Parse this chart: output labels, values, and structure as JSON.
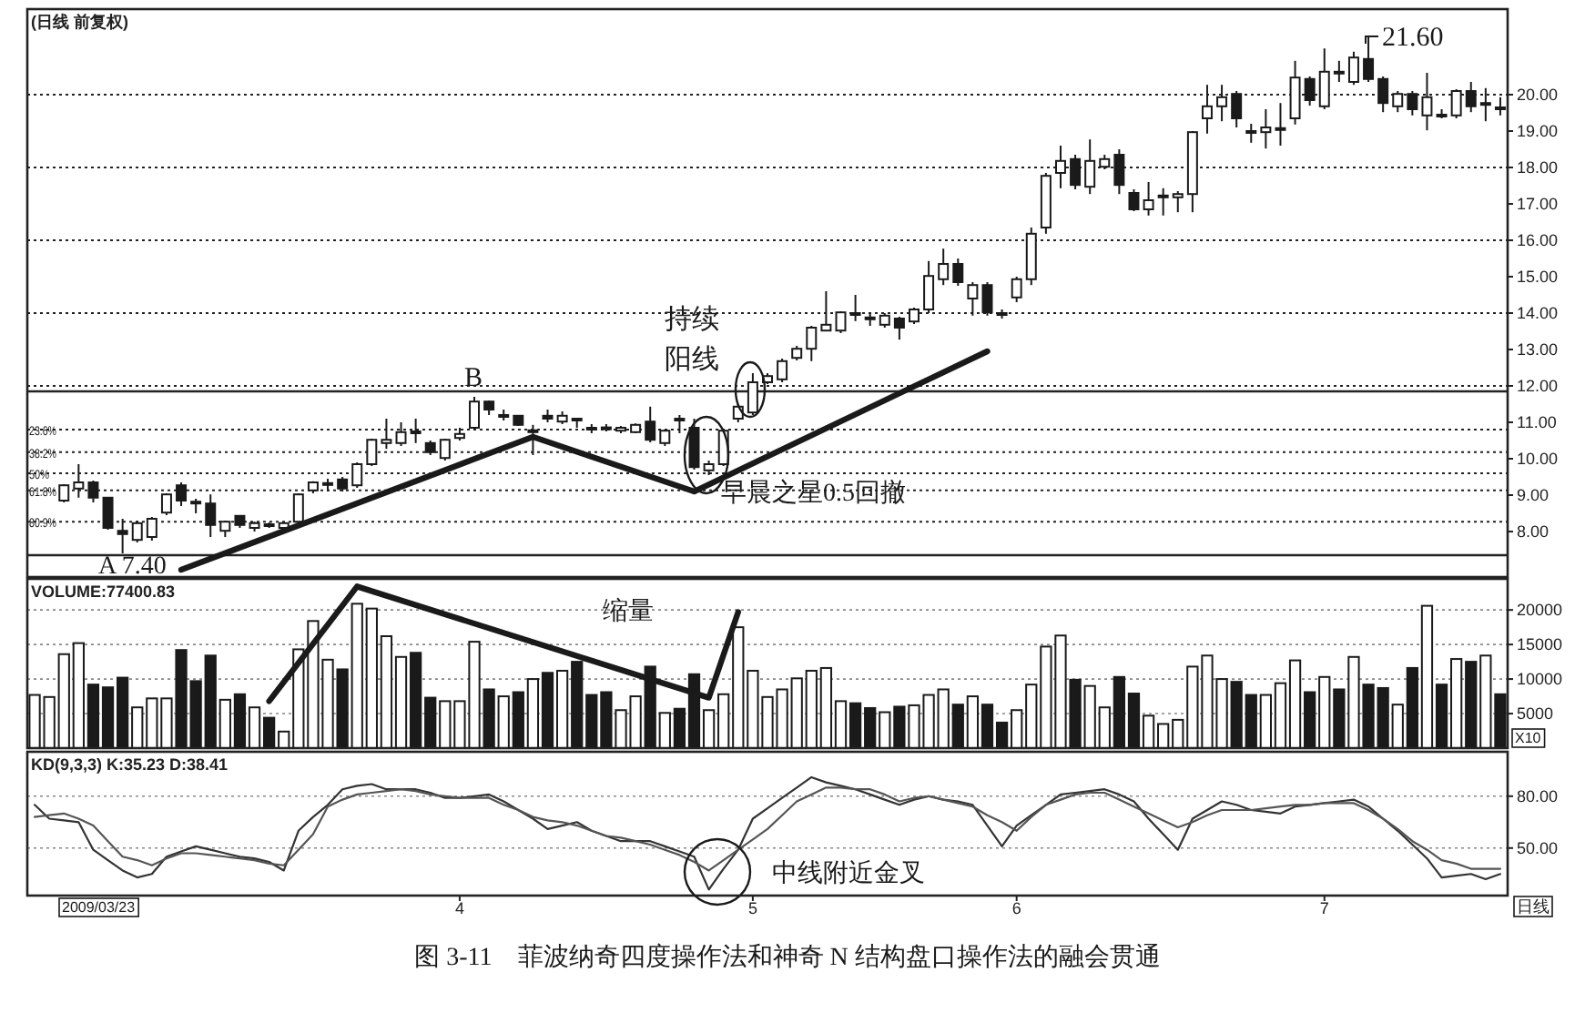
{
  "chart_data": [
    {
      "type": "candlestick",
      "title": "(日线 前复权)",
      "categories": [
        null,
        null,
        null,
        null,
        null,
        null,
        null,
        null,
        null,
        null,
        null,
        null,
        null,
        null,
        null,
        null,
        null,
        null,
        null,
        null,
        null,
        null,
        null,
        null,
        null,
        null,
        null,
        null,
        null,
        null,
        null,
        null,
        null,
        null,
        null,
        null,
        null,
        null,
        null,
        null,
        null,
        null,
        null,
        null,
        null,
        null,
        null,
        null,
        null,
        null,
        null,
        null,
        null,
        null,
        null,
        null,
        null,
        null,
        null,
        null,
        null,
        null,
        null,
        null,
        null,
        null,
        null,
        null,
        null,
        null,
        null,
        null,
        null,
        null,
        null,
        null,
        null,
        null,
        null,
        null,
        null,
        null,
        null,
        null,
        null,
        null,
        null,
        null,
        null,
        null,
        null,
        null,
        null,
        null,
        null,
        null,
        null,
        null,
        null,
        null,
        null
      ],
      "ohlc": [
        null,
        null,
        [
          8.85,
          9.3,
          8.8,
          9.27
        ],
        [
          9.18,
          9.85,
          8.93,
          9.35
        ],
        [
          9.35,
          9.4,
          8.8,
          8.93
        ],
        [
          8.93,
          8.95,
          8.05,
          8.1
        ],
        [
          8.02,
          8.35,
          7.4,
          7.93
        ],
        [
          7.77,
          8.3,
          7.7,
          8.23
        ],
        [
          7.85,
          8.4,
          7.75,
          8.35
        ],
        [
          8.52,
          9.05,
          8.45,
          9.02
        ],
        [
          9.27,
          9.35,
          8.7,
          8.85
        ],
        [
          8.82,
          8.9,
          8.5,
          8.78
        ],
        [
          8.77,
          9.02,
          7.85,
          8.18
        ],
        [
          8.02,
          8.3,
          7.85,
          8.27
        ],
        [
          8.43,
          8.45,
          8.1,
          8.18
        ],
        [
          8.1,
          8.27,
          8.0,
          8.23
        ],
        [
          8.2,
          8.25,
          8.1,
          8.17
        ],
        [
          8.1,
          8.27,
          8.05,
          8.23
        ],
        [
          8.27,
          9.05,
          8.2,
          9.02
        ],
        [
          9.13,
          9.38,
          9.05,
          9.35
        ],
        [
          9.3,
          9.45,
          9.1,
          9.33
        ],
        [
          9.43,
          9.5,
          9.1,
          9.18
        ],
        [
          9.27,
          9.9,
          9.2,
          9.85
        ],
        [
          9.85,
          10.55,
          9.8,
          10.52
        ],
        [
          10.43,
          11.1,
          10.27,
          10.52
        ],
        [
          10.43,
          11.0,
          10.35,
          10.73
        ],
        [
          10.75,
          11.1,
          10.43,
          10.72
        ],
        [
          10.43,
          10.5,
          10.1,
          10.18
        ],
        [
          10.02,
          10.55,
          9.95,
          10.52
        ],
        [
          10.57,
          10.85,
          10.5,
          10.68
        ],
        [
          10.85,
          11.7,
          10.8,
          11.57
        ],
        [
          11.57,
          11.6,
          11.2,
          11.35
        ],
        [
          11.17,
          11.35,
          11.05,
          11.2
        ],
        [
          11.18,
          11.2,
          10.9,
          10.93
        ],
        [
          10.75,
          10.93,
          10.1,
          10.78
        ],
        [
          11.18,
          11.35,
          11.0,
          11.1
        ],
        [
          11.02,
          11.3,
          10.95,
          11.18
        ],
        [
          11.1,
          11.12,
          10.85,
          11.08
        ],
        [
          10.85,
          10.95,
          10.7,
          10.83
        ],
        [
          10.86,
          10.95,
          10.75,
          10.83
        ],
        [
          10.77,
          10.9,
          10.7,
          10.85
        ],
        [
          10.73,
          10.97,
          10.7,
          10.93
        ],
        [
          11.02,
          11.43,
          10.45,
          10.52
        ],
        [
          10.43,
          10.8,
          10.35,
          10.77
        ],
        [
          11.1,
          11.2,
          10.7,
          11.07
        ],
        [
          10.85,
          11.1,
          9.7,
          9.77
        ],
        [
          9.68,
          9.95,
          9.55,
          9.85
        ],
        [
          9.85,
          10.8,
          9.8,
          10.77
        ],
        [
          11.1,
          11.5,
          11.0,
          11.43
        ],
        [
          11.27,
          12.35,
          11.2,
          12.1
        ],
        [
          12.1,
          12.35,
          12.05,
          12.27
        ],
        [
          12.18,
          12.75,
          12.1,
          12.68
        ],
        [
          12.77,
          13.1,
          12.7,
          13.02
        ],
        [
          13.02,
          13.65,
          12.68,
          13.6
        ],
        [
          13.52,
          14.6,
          13.5,
          13.68
        ],
        [
          13.52,
          14.05,
          13.45,
          14.02
        ],
        [
          14.0,
          14.5,
          13.78,
          13.95
        ],
        [
          13.88,
          14.0,
          13.65,
          13.85
        ],
        [
          13.68,
          14.0,
          13.6,
          13.93
        ],
        [
          13.85,
          13.9,
          13.27,
          13.6
        ],
        [
          13.77,
          14.15,
          13.7,
          14.1
        ],
        [
          14.1,
          15.43,
          14.0,
          15.02
        ],
        [
          14.93,
          15.77,
          14.77,
          15.35
        ],
        [
          15.35,
          15.5,
          14.75,
          14.85
        ],
        [
          14.4,
          14.85,
          13.93,
          14.77
        ],
        [
          14.77,
          14.85,
          13.93,
          14.02
        ],
        [
          14.0,
          14.1,
          13.85,
          13.97
        ],
        [
          14.43,
          15.0,
          14.3,
          14.93
        ],
        [
          14.93,
          16.35,
          14.77,
          16.18
        ],
        [
          16.35,
          17.85,
          16.18,
          17.77
        ],
        [
          17.85,
          18.6,
          17.43,
          18.18
        ],
        [
          18.23,
          18.35,
          17.4,
          17.52
        ],
        [
          17.47,
          18.77,
          17.27,
          18.18
        ],
        [
          18.02,
          18.35,
          17.95,
          18.23
        ],
        [
          18.35,
          18.5,
          17.27,
          17.52
        ],
        [
          17.3,
          17.4,
          16.8,
          16.85
        ],
        [
          16.85,
          17.6,
          16.68,
          17.1
        ],
        [
          17.2,
          17.43,
          16.68,
          17.23
        ],
        [
          17.18,
          17.35,
          16.77,
          17.27
        ],
        [
          17.27,
          19.0,
          16.77,
          18.97
        ],
        [
          19.35,
          20.27,
          18.93,
          19.68
        ],
        [
          19.68,
          20.27,
          19.27,
          19.93
        ],
        [
          20.02,
          20.1,
          19.1,
          19.35
        ],
        [
          19.0,
          19.2,
          18.68,
          18.95
        ],
        [
          18.97,
          19.6,
          18.52,
          19.1
        ],
        [
          19.05,
          19.77,
          18.6,
          19.08
        ],
        [
          19.35,
          20.93,
          19.18,
          20.47
        ],
        [
          20.43,
          20.5,
          19.7,
          19.85
        ],
        [
          19.68,
          21.27,
          19.6,
          20.63
        ],
        [
          20.63,
          20.93,
          20.35,
          20.6
        ],
        [
          20.35,
          21.18,
          20.27,
          21.02
        ],
        [
          20.98,
          21.6,
          20.35,
          20.43
        ],
        [
          20.43,
          20.5,
          19.52,
          19.77
        ],
        [
          19.68,
          20.1,
          19.52,
          20.02
        ],
        [
          20.02,
          20.1,
          19.43,
          19.6
        ],
        [
          19.43,
          20.6,
          19.02,
          19.93
        ],
        [
          19.45,
          19.6,
          19.35,
          19.43
        ],
        [
          19.43,
          20.15,
          19.35,
          20.1
        ],
        [
          20.1,
          20.35,
          19.52,
          19.68
        ],
        [
          19.75,
          20.18,
          19.27,
          19.77
        ],
        [
          19.65,
          19.93,
          19.43,
          19.62
        ]
      ],
      "series": [
        {
          "type": "line",
          "color": "#1a1a1a",
          "values": [
            null,
            null,
            null,
            null,
            null,
            null,
            null,
            null,
            null,
            null,
            6.95,
            null,
            null,
            null,
            null,
            null,
            null,
            null,
            null,
            null,
            null,
            null,
            null,
            null,
            null,
            null,
            null,
            null,
            null,
            null,
            null,
            null,
            null,
            null,
            10.6,
            null,
            null,
            null,
            null,
            null,
            null,
            null,
            null,
            null,
            null,
            9.1,
            null,
            null,
            null,
            null,
            null,
            null,
            null,
            null,
            null,
            null,
            null,
            null,
            null,
            null,
            null,
            null,
            null,
            null,
            null,
            12.95,
            null,
            null,
            null,
            null,
            null,
            null,
            null,
            null,
            null,
            null,
            null,
            null,
            null,
            null,
            null,
            null,
            null,
            null,
            null,
            null,
            null,
            null,
            null,
            null,
            null,
            null,
            null,
            null,
            null,
            null,
            null,
            null,
            null,
            null,
            null
          ]
        }
      ],
      "ylim": [
        6.75,
        22.35
      ],
      "yticks": [
        {
          "value": 8,
          "label": "8.00"
        },
        {
          "value": 9,
          "label": "9.00"
        },
        {
          "value": 10,
          "label": "10.00"
        },
        {
          "value": 11,
          "label": "11.00"
        },
        {
          "value": 12,
          "label": "12.00"
        },
        {
          "value": 13,
          "label": "13.00"
        },
        {
          "value": 14,
          "label": "14.00"
        },
        {
          "value": 15,
          "label": "15.00"
        },
        {
          "value": 16,
          "label": "16.00"
        },
        {
          "value": 17,
          "label": "17.00"
        },
        {
          "value": 18,
          "label": "18.00"
        },
        {
          "value": 19,
          "label": "19.00"
        },
        {
          "value": 20,
          "label": "20.00"
        }
      ],
      "tick_labels": "y",
      "ref_lines": [
        {
          "axis": "y",
          "value": 10.8,
          "line_style": "dotted"
        },
        {
          "axis": "y",
          "value": 10.18,
          "line_style": "dotted"
        },
        {
          "axis": "y",
          "value": 9.6,
          "line_style": "dotted"
        },
        {
          "axis": "y",
          "value": 9.13,
          "line_style": "dotted"
        },
        {
          "axis": "y",
          "value": 8.27,
          "line_style": "dotted"
        },
        {
          "axis": "y",
          "value": 12,
          "line_style": "dotted"
        },
        {
          "axis": "y",
          "value": 14,
          "line_style": "dotted"
        },
        {
          "axis": "y",
          "value": 16,
          "line_style": "dotted"
        },
        {
          "axis": "y",
          "value": 18,
          "line_style": "dotted"
        },
        {
          "axis": "y",
          "value": 20,
          "line_style": "dotted"
        },
        {
          "axis": "y",
          "value": 11.85,
          "line_style": "solid"
        },
        {
          "axis": "y",
          "value": 7.35,
          "line_style": "solid"
        }
      ],
      "annotations": [
        {
          "text": "B",
          "y": 11.7
        },
        {
          "text": "A 7.40",
          "y": 7.4
        },
        "21.60",
        {
          "text": "持续阳线",
          "y": 11.9
        },
        {
          "text": "早晨之星0.5回撤",
          "y": 10.1
        },
        {
          "text": "23.6%",
          "y": 10.8
        },
        {
          "text": "38.2%",
          "y": 10.18
        },
        {
          "text": "50%",
          "y": 9.6
        },
        {
          "text": "61.8%",
          "y": 9.13
        },
        {
          "text": "80.9%",
          "y": 8.27
        }
      ]
    },
    {
      "type": "bar",
      "title": "VOLUME:77400.83",
      "categories": [
        null,
        null,
        null,
        null,
        null,
        null,
        null,
        null,
        null,
        null,
        null,
        null,
        null,
        null,
        null,
        null,
        null,
        null,
        null,
        null,
        null,
        null,
        null,
        null,
        null,
        null,
        null,
        null,
        null,
        null,
        null,
        null,
        null,
        null,
        null,
        null,
        null,
        null,
        null,
        null,
        null,
        null,
        null,
        null,
        null,
        null,
        null,
        null,
        null,
        null,
        null,
        null,
        null,
        null,
        null,
        null,
        null,
        null,
        null,
        null,
        null,
        null,
        null,
        null,
        null,
        null,
        null,
        null,
        null,
        null,
        null,
        null,
        null,
        null,
        null,
        null,
        null,
        null,
        null,
        null,
        null,
        null,
        null,
        null,
        null,
        null,
        null,
        null,
        null,
        null,
        null,
        null,
        null,
        null,
        null,
        null,
        null,
        null,
        null,
        null,
        null
      ],
      "series": [
        {
          "type": "bar",
          "values": [
            7700,
            7400,
            13600,
            15200,
            9200,
            8800,
            10200,
            5900,
            7200,
            7200,
            14200,
            9700,
            13400,
            7000,
            7800,
            5900,
            4400,
            2400,
            14300,
            18400,
            12800,
            11400,
            20900,
            20200,
            16200,
            13200,
            13800,
            7300,
            6800,
            6800,
            15400,
            8500,
            7500,
            8100,
            10000,
            10900,
            11200,
            12500,
            7700,
            8100,
            5500,
            7500,
            11800,
            5100,
            5700,
            10700,
            5500,
            7800,
            17500,
            11200,
            7400,
            8500,
            10100,
            11200,
            11600,
            6800,
            6500,
            5800,
            5200,
            6000,
            6200,
            7700,
            8500,
            6300,
            7500,
            6300,
            3700,
            5500,
            9200,
            14700,
            16300,
            9900,
            9000,
            5900,
            10300,
            7900,
            4700,
            3500,
            4100,
            11800,
            13400,
            10000,
            9600,
            7700,
            7700,
            9400,
            12700,
            8100,
            10300,
            8500,
            13200,
            9200,
            8700,
            6300,
            11600,
            20600,
            9200,
            12900,
            12500,
            13400,
            7800
          ],
          "colors": [
            "#ffffff",
            "#ffffff",
            "#ffffff",
            "#ffffff",
            "#1a1a1a",
            "#1a1a1a",
            "#1a1a1a",
            "#ffffff",
            "#ffffff",
            "#ffffff",
            "#1a1a1a",
            "#1a1a1a",
            "#1a1a1a",
            "#ffffff",
            "#1a1a1a",
            "#ffffff",
            "#1a1a1a",
            "#ffffff",
            "#ffffff",
            "#ffffff",
            "#ffffff",
            "#1a1a1a",
            "#ffffff",
            "#ffffff",
            "#ffffff",
            "#ffffff",
            "#1a1a1a",
            "#1a1a1a",
            "#ffffff",
            "#ffffff",
            "#ffffff",
            "#1a1a1a",
            "#ffffff",
            "#1a1a1a",
            "#ffffff",
            "#1a1a1a",
            "#ffffff",
            "#1a1a1a",
            "#1a1a1a",
            "#1a1a1a",
            "#ffffff",
            "#ffffff",
            "#1a1a1a",
            "#ffffff",
            "#1a1a1a",
            "#1a1a1a",
            "#ffffff",
            "#ffffff",
            "#ffffff",
            "#ffffff",
            "#ffffff",
            "#ffffff",
            "#ffffff",
            "#ffffff",
            "#ffffff",
            "#ffffff",
            "#1a1a1a",
            "#1a1a1a",
            "#ffffff",
            "#1a1a1a",
            "#ffffff",
            "#ffffff",
            "#ffffff",
            "#1a1a1a",
            "#ffffff",
            "#1a1a1a",
            "#1a1a1a",
            "#ffffff",
            "#ffffff",
            "#ffffff",
            "#ffffff",
            "#1a1a1a",
            "#ffffff",
            "#ffffff",
            "#1a1a1a",
            "#1a1a1a",
            "#ffffff",
            "#ffffff",
            "#ffffff",
            "#ffffff",
            "#ffffff",
            "#ffffff",
            "#1a1a1a",
            "#1a1a1a",
            "#ffffff",
            "#ffffff",
            "#ffffff",
            "#1a1a1a",
            "#ffffff",
            "#1a1a1a",
            "#ffffff",
            "#1a1a1a",
            "#1a1a1a",
            "#ffffff",
            "#1a1a1a",
            "#ffffff",
            "#1a1a1a",
            "#ffffff",
            "#1a1a1a",
            "#ffffff",
            "#1a1a1a"
          ]
        },
        {
          "type": "line",
          "color": "#1a1a1a",
          "values": [
            null,
            null,
            null,
            null,
            null,
            null,
            null,
            null,
            null,
            null,
            null,
            null,
            null,
            null,
            null,
            null,
            6800,
            null,
            null,
            null,
            null,
            null,
            23400,
            null,
            null,
            null,
            null,
            null,
            null,
            null,
            null,
            null,
            null,
            null,
            null,
            null,
            null,
            null,
            null,
            null,
            null,
            null,
            null,
            null,
            null,
            null,
            7300,
            null,
            19700,
            null,
            null,
            null,
            null,
            null,
            null,
            null,
            null,
            null,
            null,
            null,
            null,
            null,
            null,
            null,
            null,
            null,
            null,
            null,
            null,
            null,
            null,
            null,
            null,
            null,
            null,
            null,
            null,
            null,
            null,
            null,
            null,
            null,
            null,
            null,
            null,
            null,
            null,
            null,
            null,
            null,
            null,
            null,
            null,
            null,
            null,
            null,
            null,
            null,
            null,
            null,
            null
          ]
        }
      ],
      "ylim": [
        0,
        24500
      ],
      "yticks": [
        5000,
        10000,
        15000,
        20000
      ],
      "grid": "y",
      "tick_labels": "y",
      "annotations": [
        "X10",
        "缩量"
      ]
    },
    {
      "type": "line",
      "title": "KD(9,3,3) K:35.23 D:38.41",
      "categories": [
        null,
        null,
        null,
        null,
        null,
        null,
        null,
        null,
        null,
        null,
        null,
        null,
        null,
        null,
        null,
        null,
        null,
        null,
        null,
        null,
        null,
        null,
        null,
        null,
        null,
        null,
        null,
        null,
        null,
        "4",
        null,
        null,
        null,
        null,
        null,
        null,
        null,
        null,
        null,
        null,
        null,
        null,
        null,
        null,
        null,
        null,
        null,
        null,
        null,
        "5",
        null,
        null,
        null,
        null,
        null,
        null,
        null,
        null,
        null,
        null,
        null,
        null,
        null,
        null,
        null,
        null,
        null,
        "6",
        null,
        null,
        null,
        null,
        null,
        null,
        null,
        null,
        null,
        null,
        null,
        null,
        null,
        null,
        null,
        null,
        null,
        null,
        null,
        null,
        "7",
        null,
        null,
        null,
        null,
        null,
        null,
        null,
        null,
        null,
        null,
        null,
        null
      ],
      "series": [
        {
          "color": "#333333",
          "values": [
            75,
            67,
            66,
            65,
            49,
            43,
            37,
            33,
            35,
            45,
            48,
            51,
            49,
            47,
            45,
            44,
            42,
            37,
            60,
            68,
            75,
            84,
            86,
            87,
            84,
            84,
            84,
            82,
            79,
            79,
            80,
            81,
            77,
            72,
            67,
            61,
            63,
            65,
            60,
            57,
            54,
            54,
            54,
            51,
            48,
            45,
            26,
            38,
            49,
            67,
            73,
            79,
            85,
            91,
            88,
            86,
            84,
            81,
            78,
            75,
            78,
            80,
            78,
            77,
            75,
            63,
            51,
            63,
            69,
            75,
            81,
            82,
            83,
            84,
            81,
            77,
            67,
            58,
            49,
            67,
            72,
            77,
            75,
            72,
            71,
            70,
            74,
            75,
            76,
            77,
            78,
            74,
            67,
            60,
            52,
            44,
            33,
            34,
            35,
            32,
            35
          ]
        },
        {
          "color": "#555555",
          "values": [
            68,
            69,
            70,
            67,
            63,
            54,
            45,
            43,
            40,
            44,
            47,
            47,
            46,
            45,
            44,
            43,
            41,
            40,
            49,
            58,
            74,
            78,
            81,
            82,
            83,
            84,
            83,
            81,
            80,
            79,
            79,
            79,
            75,
            72,
            68,
            66,
            65,
            63,
            60,
            57,
            56,
            54,
            52,
            49,
            46,
            42,
            37,
            43,
            49,
            55,
            61,
            69,
            77,
            81,
            85,
            85,
            84,
            84,
            81,
            77,
            79,
            80,
            78,
            76,
            74,
            69,
            65,
            60,
            68,
            75,
            78,
            81,
            82,
            82,
            78,
            74,
            70,
            66,
            62,
            65,
            69,
            72,
            72,
            72,
            73,
            74,
            75,
            75,
            76,
            76,
            76,
            72,
            67,
            61,
            54,
            49,
            43,
            41,
            38,
            38,
            38
          ]
        }
      ],
      "ylim": [
        22.5,
        105.7
      ],
      "yticks": [
        {
          "value": 50,
          "label": "50.00"
        },
        {
          "value": 80,
          "label": "80.00"
        }
      ],
      "grid": "y",
      "annotations": [
        "中线附近金叉",
        "日线",
        "2009/03/23",
        "图 3-11　菲波纳奇四度操作法和神奇 N 结构盘口操作法的融会贯通"
      ]
    }
  ]
}
